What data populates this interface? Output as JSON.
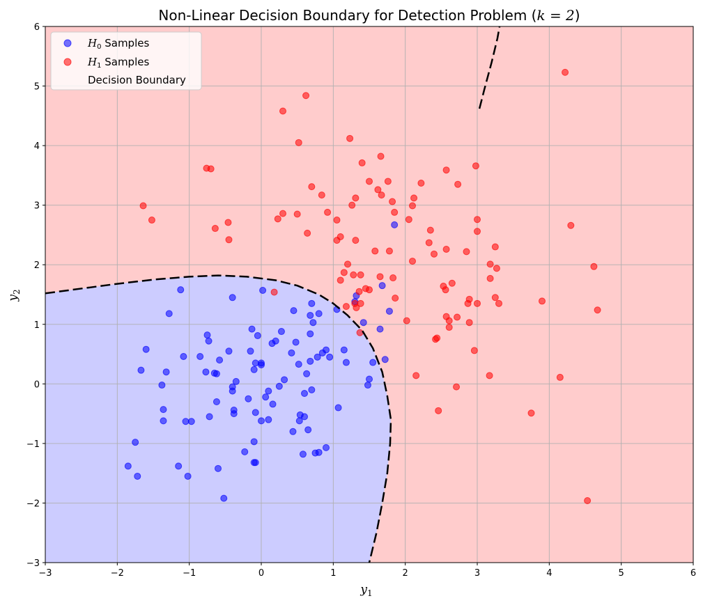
{
  "chart_data": {
    "type": "scatter",
    "title_prefix": "Non-Linear Decision Boundary for Detection Problem (",
    "title_math": "k = 2",
    "title_suffix": ")",
    "xlabel_var": "y",
    "xlabel_sub": "1",
    "ylabel_var": "y",
    "ylabel_sub": "2",
    "xlim": [
      -3,
      6
    ],
    "ylim": [
      -3,
      6
    ],
    "xticks": [
      -3,
      -2,
      -1,
      0,
      1,
      2,
      3,
      4,
      5,
      6
    ],
    "yticks": [
      -3,
      -2,
      -1,
      0,
      1,
      2,
      3,
      4,
      5,
      6
    ],
    "grid": true,
    "legend_position": "top-left",
    "region_colors": {
      "H0": "#ccccff",
      "H1": "#ffcccc"
    },
    "boundary_color": "#000000",
    "boundary_style": "dashed",
    "legend": [
      {
        "var": "H",
        "sub": "0",
        "text": " Samples",
        "color": "#0000ff",
        "marker": "circle"
      },
      {
        "var": "H",
        "sub": "1",
        "text": " Samples",
        "color": "#ff0000",
        "marker": "circle"
      },
      {
        "var": "",
        "sub": "",
        "text": "Decision Boundary",
        "color": "#000000",
        "marker": "none"
      }
    ],
    "boundary_main": [
      [
        -3.0,
        1.52
      ],
      [
        -2.5,
        1.6
      ],
      [
        -2.0,
        1.68
      ],
      [
        -1.5,
        1.75
      ],
      [
        -1.0,
        1.8
      ],
      [
        -0.6,
        1.82
      ],
      [
        -0.2,
        1.8
      ],
      [
        0.2,
        1.74
      ],
      [
        0.5,
        1.65
      ],
      [
        0.8,
        1.5
      ],
      [
        1.0,
        1.35
      ],
      [
        1.2,
        1.15
      ],
      [
        1.4,
        0.9
      ],
      [
        1.55,
        0.6
      ],
      [
        1.68,
        0.2
      ],
      [
        1.75,
        -0.2
      ],
      [
        1.8,
        -0.6
      ],
      [
        1.79,
        -1.0
      ],
      [
        1.75,
        -1.5
      ],
      [
        1.68,
        -2.0
      ],
      [
        1.6,
        -2.5
      ],
      [
        1.5,
        -3.0
      ]
    ],
    "boundary_secondary": [
      [
        3.03,
        4.62
      ],
      [
        3.1,
        4.95
      ],
      [
        3.2,
        5.4
      ],
      [
        3.28,
        5.8
      ],
      [
        3.34,
        6.2
      ]
    ],
    "series": [
      {
        "name": "H0 Samples",
        "color": "#0000ff",
        "points": [
          [
            -1.12,
            1.58
          ],
          [
            -1.28,
            1.18
          ],
          [
            -0.4,
            1.45
          ],
          [
            0.02,
            1.57
          ],
          [
            0.45,
            1.23
          ],
          [
            0.7,
            1.35
          ],
          [
            0.8,
            1.18
          ],
          [
            0.68,
            1.15
          ],
          [
            0.72,
            1.03
          ],
          [
            1.05,
            1.25
          ],
          [
            1.32,
            1.48
          ],
          [
            1.3,
            1.38
          ],
          [
            1.42,
            1.03
          ],
          [
            1.65,
            0.92
          ],
          [
            1.68,
            1.65
          ],
          [
            1.78,
            1.22
          ],
          [
            1.85,
            2.67
          ],
          [
            -0.75,
            0.82
          ],
          [
            -0.73,
            0.72
          ],
          [
            -0.13,
            0.92
          ],
          [
            -0.05,
            0.81
          ],
          [
            0.15,
            0.68
          ],
          [
            0.2,
            0.72
          ],
          [
            0.28,
            0.88
          ],
          [
            0.48,
            0.7
          ],
          [
            0.68,
            0.84
          ],
          [
            -1.6,
            0.58
          ],
          [
            -0.45,
            0.55
          ],
          [
            -0.15,
            0.55
          ],
          [
            0.42,
            0.52
          ],
          [
            0.9,
            0.57
          ],
          [
            0.85,
            0.52
          ],
          [
            1.15,
            0.57
          ],
          [
            1.72,
            0.41
          ],
          [
            -1.08,
            0.46
          ],
          [
            -0.85,
            0.46
          ],
          [
            -0.58,
            0.4
          ],
          [
            0.52,
            0.33
          ],
          [
            0.68,
            0.38
          ],
          [
            0.78,
            0.45
          ],
          [
            0.95,
            0.45
          ],
          [
            1.18,
            0.36
          ],
          [
            1.55,
            0.36
          ],
          [
            -1.67,
            0.23
          ],
          [
            -1.32,
            0.2
          ],
          [
            -0.77,
            0.2
          ],
          [
            -0.65,
            0.18
          ],
          [
            -0.62,
            0.17
          ],
          [
            -0.35,
            0.04
          ],
          [
            -0.08,
            0.35
          ],
          [
            0.0,
            0.35
          ],
          [
            0.0,
            0.32
          ],
          [
            -0.1,
            0.24
          ],
          [
            0.32,
            0.07
          ],
          [
            0.63,
            0.17
          ],
          [
            1.5,
            0.08
          ],
          [
            1.48,
            -0.02
          ],
          [
            -1.38,
            -0.02
          ],
          [
            -0.4,
            -0.05
          ],
          [
            -0.4,
            -0.12
          ],
          [
            0.1,
            -0.12
          ],
          [
            0.25,
            -0.04
          ],
          [
            0.7,
            -0.1
          ],
          [
            0.6,
            -0.16
          ],
          [
            -0.18,
            -0.25
          ],
          [
            0.06,
            -0.22
          ],
          [
            -0.62,
            -0.3
          ],
          [
            0.16,
            -0.34
          ],
          [
            1.07,
            -0.4
          ],
          [
            -1.36,
            -0.43
          ],
          [
            -0.38,
            -0.44
          ],
          [
            -0.38,
            -0.5
          ],
          [
            -0.08,
            -0.48
          ],
          [
            0.54,
            -0.52
          ],
          [
            0.6,
            -0.55
          ],
          [
            -0.72,
            -0.55
          ],
          [
            -1.36,
            -0.62
          ],
          [
            -1.05,
            -0.63
          ],
          [
            -0.97,
            -0.63
          ],
          [
            0.0,
            -0.62
          ],
          [
            0.1,
            -0.6
          ],
          [
            0.53,
            -0.62
          ],
          [
            0.65,
            -0.77
          ],
          [
            0.44,
            -0.8
          ],
          [
            -1.75,
            -0.98
          ],
          [
            -0.1,
            -0.97
          ],
          [
            0.9,
            -1.07
          ],
          [
            -0.23,
            -1.14
          ],
          [
            0.58,
            -1.18
          ],
          [
            0.75,
            -1.16
          ],
          [
            0.8,
            -1.15
          ],
          [
            -0.1,
            -1.32
          ],
          [
            -0.08,
            -1.32
          ],
          [
            -1.85,
            -1.38
          ],
          [
            -1.15,
            -1.38
          ],
          [
            -0.6,
            -1.42
          ],
          [
            -1.72,
            -1.55
          ],
          [
            -1.02,
            -1.55
          ],
          [
            -0.52,
            -1.92
          ]
        ]
      },
      {
        "name": "H1 Samples",
        "color": "#ff0000",
        "points": [
          [
            4.22,
            5.23
          ],
          [
            0.62,
            4.84
          ],
          [
            0.3,
            4.58
          ],
          [
            0.52,
            4.05
          ],
          [
            1.23,
            4.12
          ],
          [
            1.66,
            3.82
          ],
          [
            1.4,
            3.71
          ],
          [
            -0.76,
            3.62
          ],
          [
            -0.7,
            3.61
          ],
          [
            2.57,
            3.59
          ],
          [
            2.98,
            3.66
          ],
          [
            1.5,
            3.4
          ],
          [
            1.76,
            3.4
          ],
          [
            2.22,
            3.37
          ],
          [
            2.73,
            3.35
          ],
          [
            0.7,
            3.31
          ],
          [
            1.62,
            3.26
          ],
          [
            1.67,
            3.17
          ],
          [
            0.84,
            3.17
          ],
          [
            1.31,
            3.12
          ],
          [
            2.12,
            3.12
          ],
          [
            1.82,
            3.06
          ],
          [
            1.26,
            3.0
          ],
          [
            2.1,
            2.99
          ],
          [
            -1.64,
            2.99
          ],
          [
            0.92,
            2.88
          ],
          [
            0.3,
            2.86
          ],
          [
            0.5,
            2.85
          ],
          [
            1.85,
            2.88
          ],
          [
            0.23,
            2.77
          ],
          [
            1.05,
            2.75
          ],
          [
            2.05,
            2.76
          ],
          [
            3.0,
            2.76
          ],
          [
            -1.52,
            2.75
          ],
          [
            -0.46,
            2.71
          ],
          [
            4.3,
            2.66
          ],
          [
            -0.64,
            2.61
          ],
          [
            2.35,
            2.58
          ],
          [
            3.0,
            2.56
          ],
          [
            0.64,
            2.53
          ],
          [
            2.33,
            2.37
          ],
          [
            1.1,
            2.47
          ],
          [
            1.05,
            2.41
          ],
          [
            1.31,
            2.41
          ],
          [
            -0.45,
            2.42
          ],
          [
            3.25,
            2.3
          ],
          [
            1.58,
            2.23
          ],
          [
            1.78,
            2.23
          ],
          [
            2.57,
            2.26
          ],
          [
            2.85,
            2.22
          ],
          [
            2.4,
            2.18
          ],
          [
            2.1,
            2.06
          ],
          [
            1.2,
            2.01
          ],
          [
            3.18,
            2.01
          ],
          [
            3.27,
            1.94
          ],
          [
            4.62,
            1.97
          ],
          [
            1.15,
            1.87
          ],
          [
            1.28,
            1.83
          ],
          [
            1.38,
            1.83
          ],
          [
            1.1,
            1.74
          ],
          [
            1.65,
            1.8
          ],
          [
            1.83,
            1.78
          ],
          [
            3.18,
            1.77
          ],
          [
            2.65,
            1.69
          ],
          [
            2.53,
            1.64
          ],
          [
            2.56,
            1.58
          ],
          [
            1.36,
            1.55
          ],
          [
            1.45,
            1.6
          ],
          [
            1.5,
            1.58
          ],
          [
            0.18,
            1.54
          ],
          [
            2.89,
            1.42
          ],
          [
            3.25,
            1.45
          ],
          [
            1.86,
            1.44
          ],
          [
            3.9,
            1.39
          ],
          [
            1.3,
            1.35
          ],
          [
            1.38,
            1.35
          ],
          [
            2.87,
            1.35
          ],
          [
            3.0,
            1.35
          ],
          [
            3.3,
            1.35
          ],
          [
            1.18,
            1.3
          ],
          [
            1.32,
            1.28
          ],
          [
            4.67,
            1.24
          ],
          [
            2.57,
            1.13
          ],
          [
            2.72,
            1.12
          ],
          [
            2.61,
            1.06
          ],
          [
            2.02,
            1.06
          ],
          [
            2.89,
            1.03
          ],
          [
            2.61,
            0.95
          ],
          [
            1.37,
            0.86
          ],
          [
            2.44,
            0.77
          ],
          [
            2.42,
            0.75
          ],
          [
            2.96,
            0.56
          ],
          [
            2.15,
            0.14
          ],
          [
            3.17,
            0.14
          ],
          [
            4.15,
            0.11
          ],
          [
            2.71,
            -0.05
          ],
          [
            2.46,
            -0.45
          ],
          [
            3.75,
            -0.49
          ],
          [
            4.53,
            -1.96
          ]
        ]
      }
    ]
  }
}
